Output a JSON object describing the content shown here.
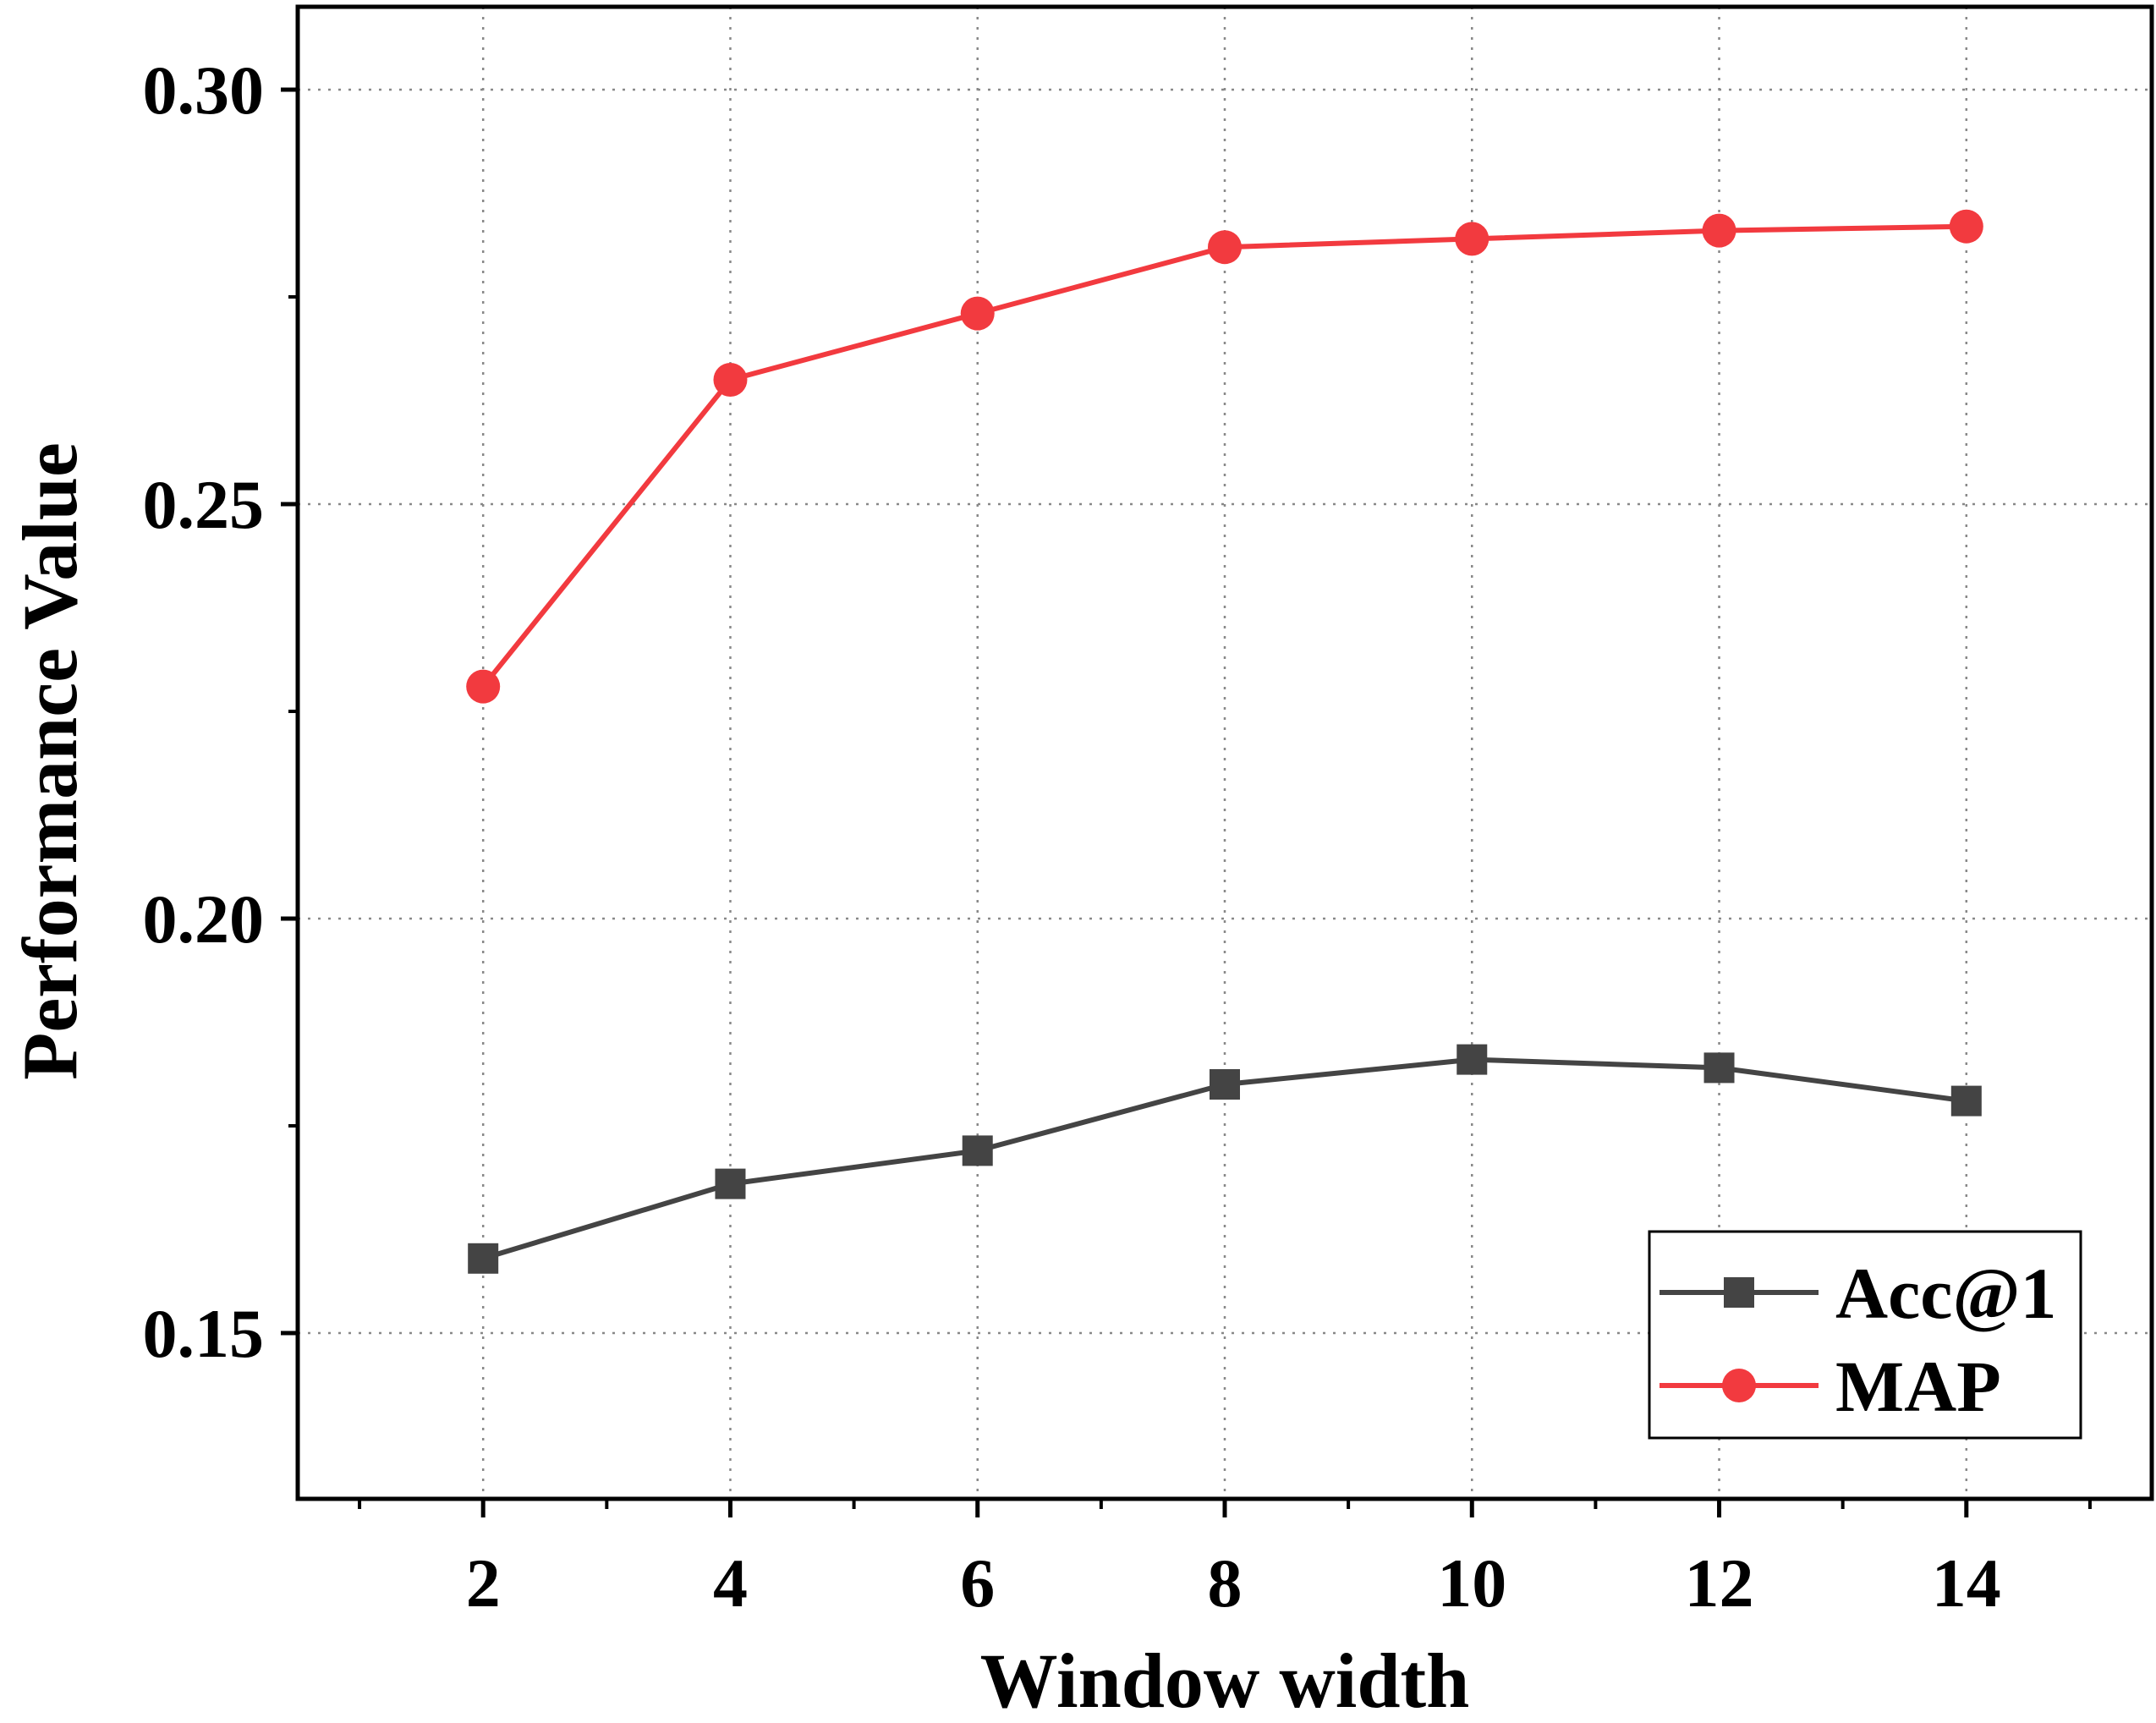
{
  "chart_data": {
    "type": "line",
    "xlabel": "Window width",
    "ylabel": "Performance Value",
    "xlim": [
      0.5,
      15.5
    ],
    "ylim": [
      0.13,
      0.31
    ],
    "x_ticks": [
      2,
      4,
      6,
      8,
      10,
      12,
      14
    ],
    "x_tick_labels": [
      "2",
      "4",
      "6",
      "8",
      "10",
      "12",
      "14"
    ],
    "y_ticks": [
      0.15,
      0.2,
      0.25,
      0.3
    ],
    "y_tick_labels": [
      "0.15",
      "0.20",
      "0.25",
      "0.30"
    ],
    "grid": true,
    "legend_position": "bottom-right",
    "x": [
      2,
      4,
      6,
      8,
      10,
      12,
      14
    ],
    "series": [
      {
        "name": "Acc@1",
        "values": [
          0.159,
          0.168,
          0.172,
          0.18,
          0.183,
          0.182,
          0.178
        ],
        "color": "#444444",
        "marker": "square"
      },
      {
        "name": "MAP",
        "values": [
          0.228,
          0.265,
          0.273,
          0.281,
          0.282,
          0.283,
          0.2835
        ],
        "color": "#f23a3f",
        "marker": "circle"
      }
    ]
  }
}
